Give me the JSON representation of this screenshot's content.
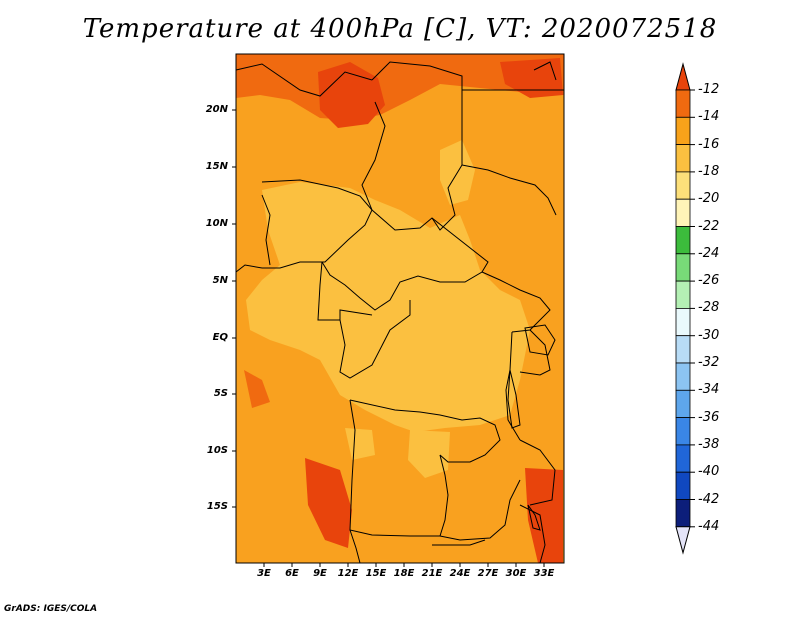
{
  "title": "Temperature at 400hPa [C], VT: 2020072518",
  "credit": "GrADS: IGES/COLA",
  "map": {
    "lat_labels": [
      "20N",
      "15N",
      "10N",
      "5N",
      "EQ",
      "5S",
      "10S",
      "15S"
    ],
    "lon_labels": [
      "3E",
      "6E",
      "9E",
      "12E",
      "15E",
      "18E",
      "21E",
      "24E",
      "27E",
      "30E",
      "33E"
    ],
    "background_color": "#f9a11f"
  },
  "colorbar": {
    "labels": [
      "-12",
      "-14",
      "-16",
      "-18",
      "-20",
      "-22",
      "-24",
      "-26",
      "-28",
      "-30",
      "-32",
      "-34",
      "-36",
      "-38",
      "-40",
      "-42",
      "-44"
    ],
    "colors": [
      "#e8440c",
      "#f06a10",
      "#f8a21a",
      "#fbc040",
      "#fde07a",
      "#fff4b8",
      "#3cbc3c",
      "#78da78",
      "#b4f0b4",
      "#eaf9fc",
      "#b8dcf6",
      "#8cc4f2",
      "#5ea6ec",
      "#3a86e6",
      "#2066d8",
      "#1048c0",
      "#0c1e7a",
      "#e4e4f8"
    ]
  }
}
